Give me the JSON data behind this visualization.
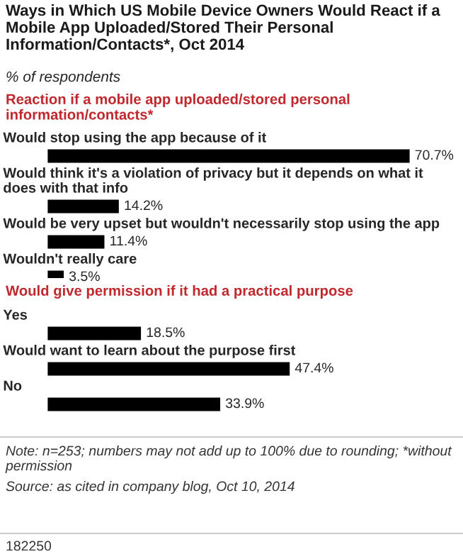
{
  "chart_data": [
    {
      "type": "bar",
      "orientation": "horizontal",
      "title": "Ways in Which US Mobile Device Owners Would React if a Mobile App Uploaded/Stored Their Personal Information/Contacts*, Oct 2014",
      "subtitle": "% of respondents",
      "annotations": [
        "Reaction if a mobile app uploaded/stored personal information/contacts*"
      ],
      "categories": [
        "Would stop using the app because of it",
        "Would think it's a violation of privacy but it depends on what it does with that info",
        "Would be very upset but wouldn't necessarily stop using the app",
        "Wouldn't really care"
      ],
      "values": [
        70.7,
        14.2,
        11.4,
        3.5
      ],
      "value_labels": [
        "70.7%",
        "14.2%",
        "11.4%",
        "3.5%"
      ],
      "color": "#000000"
    },
    {
      "type": "bar",
      "orientation": "horizontal",
      "annotations": [
        "Would give permission if it had a practical purpose",
        "Note: n=253; numbers may not add up to 100% due to rounding; *without permission",
        "Source: as cited in company blog, Oct 10, 2014",
        "182250"
      ],
      "categories": [
        "Yes",
        "Would want to learn about the purpose first",
        "No"
      ],
      "values": [
        18.5,
        47.4,
        33.9
      ],
      "value_labels": [
        "18.5%",
        "47.4%",
        "33.9%"
      ],
      "color": "#000000"
    }
  ]
}
